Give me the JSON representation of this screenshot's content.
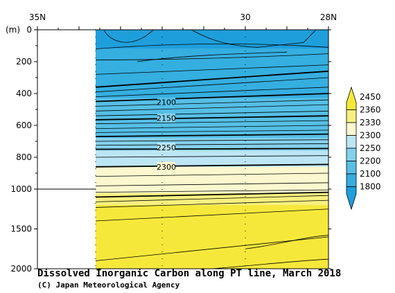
{
  "chart_data": {
    "type": "heatmap",
    "title": "Dissolved Inorganic Carbon along PT line, March 2018",
    "credit": "(C) Japan Meteorological Agency",
    "y_unit_label": "(m)",
    "x_tick_labels": [
      {
        "lat": 35,
        "label": "35N"
      },
      {
        "lat": 30,
        "label": "30"
      },
      {
        "lat": 28,
        "label": "28N"
      }
    ],
    "x_range_lat": [
      35,
      28
    ],
    "data_start_lat": 33.6,
    "y_ticks_upper": [
      0,
      200,
      400,
      600,
      800,
      1000
    ],
    "y_ticks_lower": [
      1500,
      2000
    ],
    "y_scale_break": 1000,
    "y_range": [
      0,
      2000
    ],
    "colorbar": {
      "levels": [
        1800,
        2100,
        2200,
        2250,
        2300,
        2330,
        2360,
        2450
      ],
      "labels": [
        "1800",
        "2100",
        "2200",
        "2250",
        "2300",
        "2330",
        "2360",
        "2450"
      ],
      "colors": [
        "#1e9fdc",
        "#35aee0",
        "#55bfe6",
        "#85d1ec",
        "#bde6f5",
        "#fbf8cf",
        "#f7f07f",
        "#f6e83b"
      ]
    },
    "contour_labels": [
      {
        "value": "2100",
        "lat": 31.9,
        "depth": 455
      },
      {
        "value": "2150",
        "lat": 31.9,
        "depth": 555
      },
      {
        "value": "2250",
        "lat": 31.9,
        "depth": 740
      },
      {
        "value": "2300",
        "lat": 31.9,
        "depth": 860
      }
    ],
    "station_lats": [
      33.6,
      32.0,
      30.0,
      28.0
    ]
  }
}
